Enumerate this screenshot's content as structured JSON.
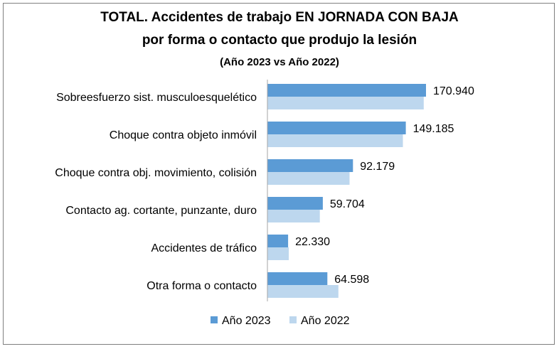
{
  "chart_data": {
    "type": "bar",
    "orientation": "horizontal",
    "title": "TOTAL. Accidentes de trabajo EN JORNADA CON BAJA",
    "title_line2": "por forma o contacto que produjo la lesión",
    "subtitle": "(Año 2023 vs Año 2022)",
    "categories": [
      "Sobreesfuerzo sist. musculoesquelético",
      "Choque contra objeto inmóvil",
      "Choque contra obj. movimiento, colisión",
      "Contacto ag. cortante, punzante, duro",
      "Accidentes de tráfico",
      "Otra forma o contacto"
    ],
    "series": [
      {
        "name": "Año 2023",
        "color": "#5b9bd5",
        "values": [
          170940,
          149185,
          92179,
          59704,
          22330,
          64598
        ],
        "labels": [
          "170.940",
          "149.185",
          "92.179",
          "59.704",
          "22.330",
          "64.598"
        ]
      },
      {
        "name": "Año 2022",
        "color": "#bdd7ee",
        "values": [
          168500,
          146000,
          88500,
          56500,
          23000,
          76500
        ]
      }
    ],
    "xlim": [
      0,
      350000
    ],
    "grid": false,
    "legend_position": "bottom"
  }
}
